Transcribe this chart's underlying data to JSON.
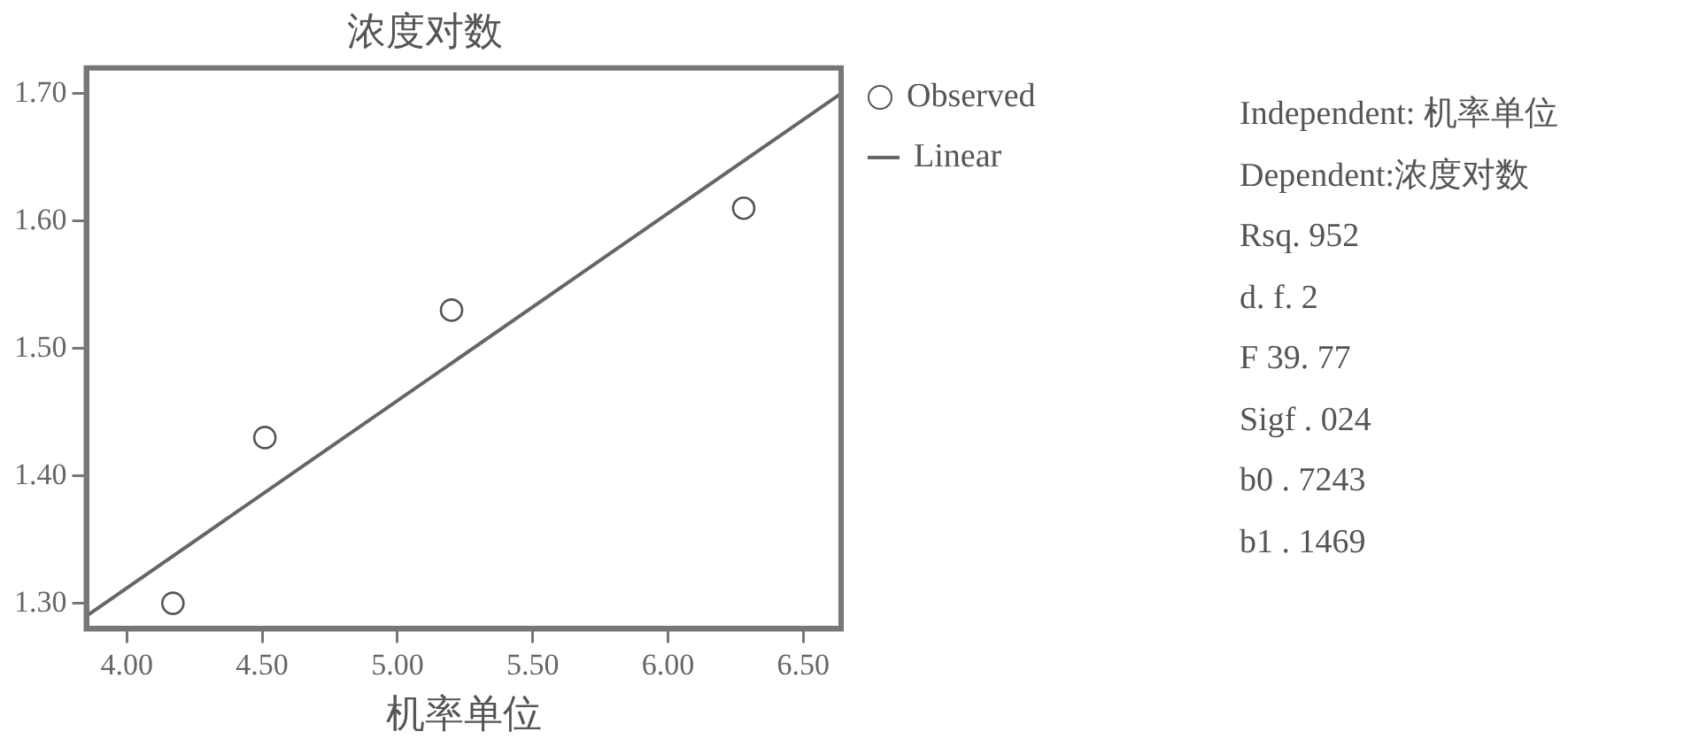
{
  "chart_data": {
    "type": "scatter",
    "title": "浓度对数",
    "xlabel": "机率单位",
    "xlim": [
      3.85,
      6.64
    ],
    "ylim": [
      1.28,
      1.72
    ],
    "xticks": [
      {
        "value": 4,
        "label": "4.00"
      },
      {
        "value": 4.5,
        "label": "4.50"
      },
      {
        "value": 5,
        "label": "5.00"
      },
      {
        "value": 5.5,
        "label": "5.50"
      },
      {
        "value": 6,
        "label": "6.00"
      },
      {
        "value": 6.5,
        "label": "6.50"
      }
    ],
    "yticks": [
      {
        "value": 1.3,
        "label": "1.30"
      },
      {
        "value": 1.4,
        "label": "1.40"
      },
      {
        "value": 1.5,
        "label": "1.50"
      },
      {
        "value": 1.6,
        "label": "1.60"
      },
      {
        "value": 1.7,
        "label": "1.70"
      }
    ],
    "series": [
      {
        "name": "Observed",
        "type": "scatter",
        "color": "#555555",
        "x": [
          4.17,
          4.51,
          5.2,
          6.28
        ],
        "values": [
          1.3,
          1.43,
          1.53,
          1.61
        ],
        "marker": "circle"
      },
      {
        "name": "Linear",
        "type": "line",
        "color": "#666666",
        "x": [
          3.85,
          6.64
        ],
        "values": [
          1.29,
          1.7
        ],
        "marker": "none"
      }
    ],
    "grid": false,
    "legend": "right",
    "annotations": [
      "Independent: 机率单位",
      "Dependent:浓度对数",
      "Rsq. 952",
      "d. f. 2",
      "F 39. 77",
      "Sigf . 024",
      "b0 . 7243",
      "b1 . 1469"
    ]
  }
}
